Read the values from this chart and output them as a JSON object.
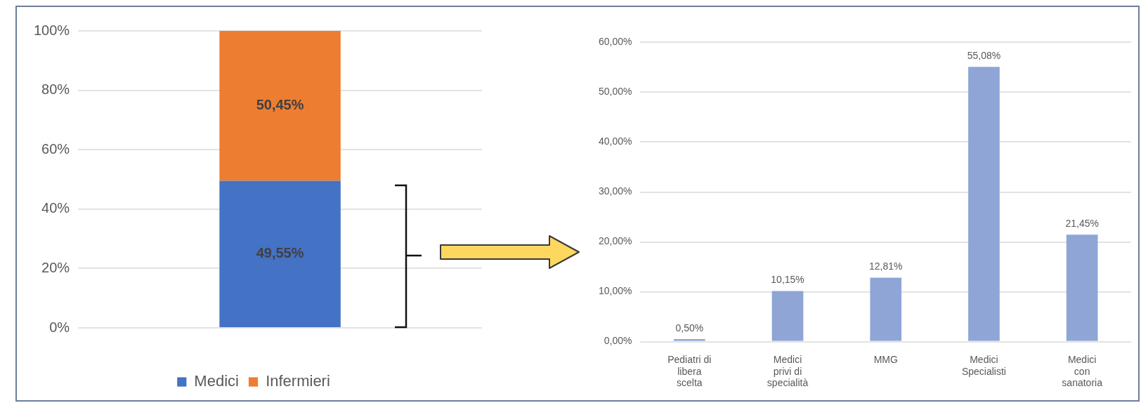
{
  "chart_data": [
    {
      "type": "bar",
      "stacked": true,
      "categories": [
        null
      ],
      "series": [
        {
          "name": "Medici",
          "color": "#4472c4",
          "values": [
            49.55
          ],
          "value_labels": [
            "49,55%"
          ]
        },
        {
          "name": "Infermieri",
          "color": "#ed7d31",
          "values": [
            50.45
          ],
          "value_labels": [
            "50,45%"
          ]
        }
      ],
      "ylim": [
        0,
        100
      ],
      "yticks": [
        {
          "value": 0,
          "label": "0%"
        },
        {
          "value": 20,
          "label": "20%"
        },
        {
          "value": 40,
          "label": "40%"
        },
        {
          "value": 60,
          "label": "60%"
        },
        {
          "value": 80,
          "label": "80%"
        },
        {
          "value": 100,
          "label": "100%"
        }
      ],
      "grid": "y",
      "legend": "bottom"
    },
    {
      "type": "bar",
      "categories": [
        "Pediatri di\nlibera\nscelta",
        "Medici\nprivi di\nspecialità",
        "MMG",
        "Medici\nSpecialisti",
        "Medici\ncon\nsanatoria"
      ],
      "values": [
        0.5,
        10.15,
        12.81,
        55.08,
        21.45
      ],
      "value_labels": [
        "0,50%",
        "10,15%",
        "12,81%",
        "55,08%",
        "21,45%"
      ],
      "color": "#8ea5d6",
      "ylim": [
        0,
        60
      ],
      "yticks": [
        {
          "value": 0,
          "label": "0,00%"
        },
        {
          "value": 10,
          "label": "10,00%"
        },
        {
          "value": 20,
          "label": "20,00%"
        },
        {
          "value": 30,
          "label": "30,00%"
        },
        {
          "value": 40,
          "label": "40,00%"
        },
        {
          "value": 50,
          "label": "50,00%"
        },
        {
          "value": 60,
          "label": "60,00%"
        }
      ],
      "grid": "y"
    }
  ]
}
